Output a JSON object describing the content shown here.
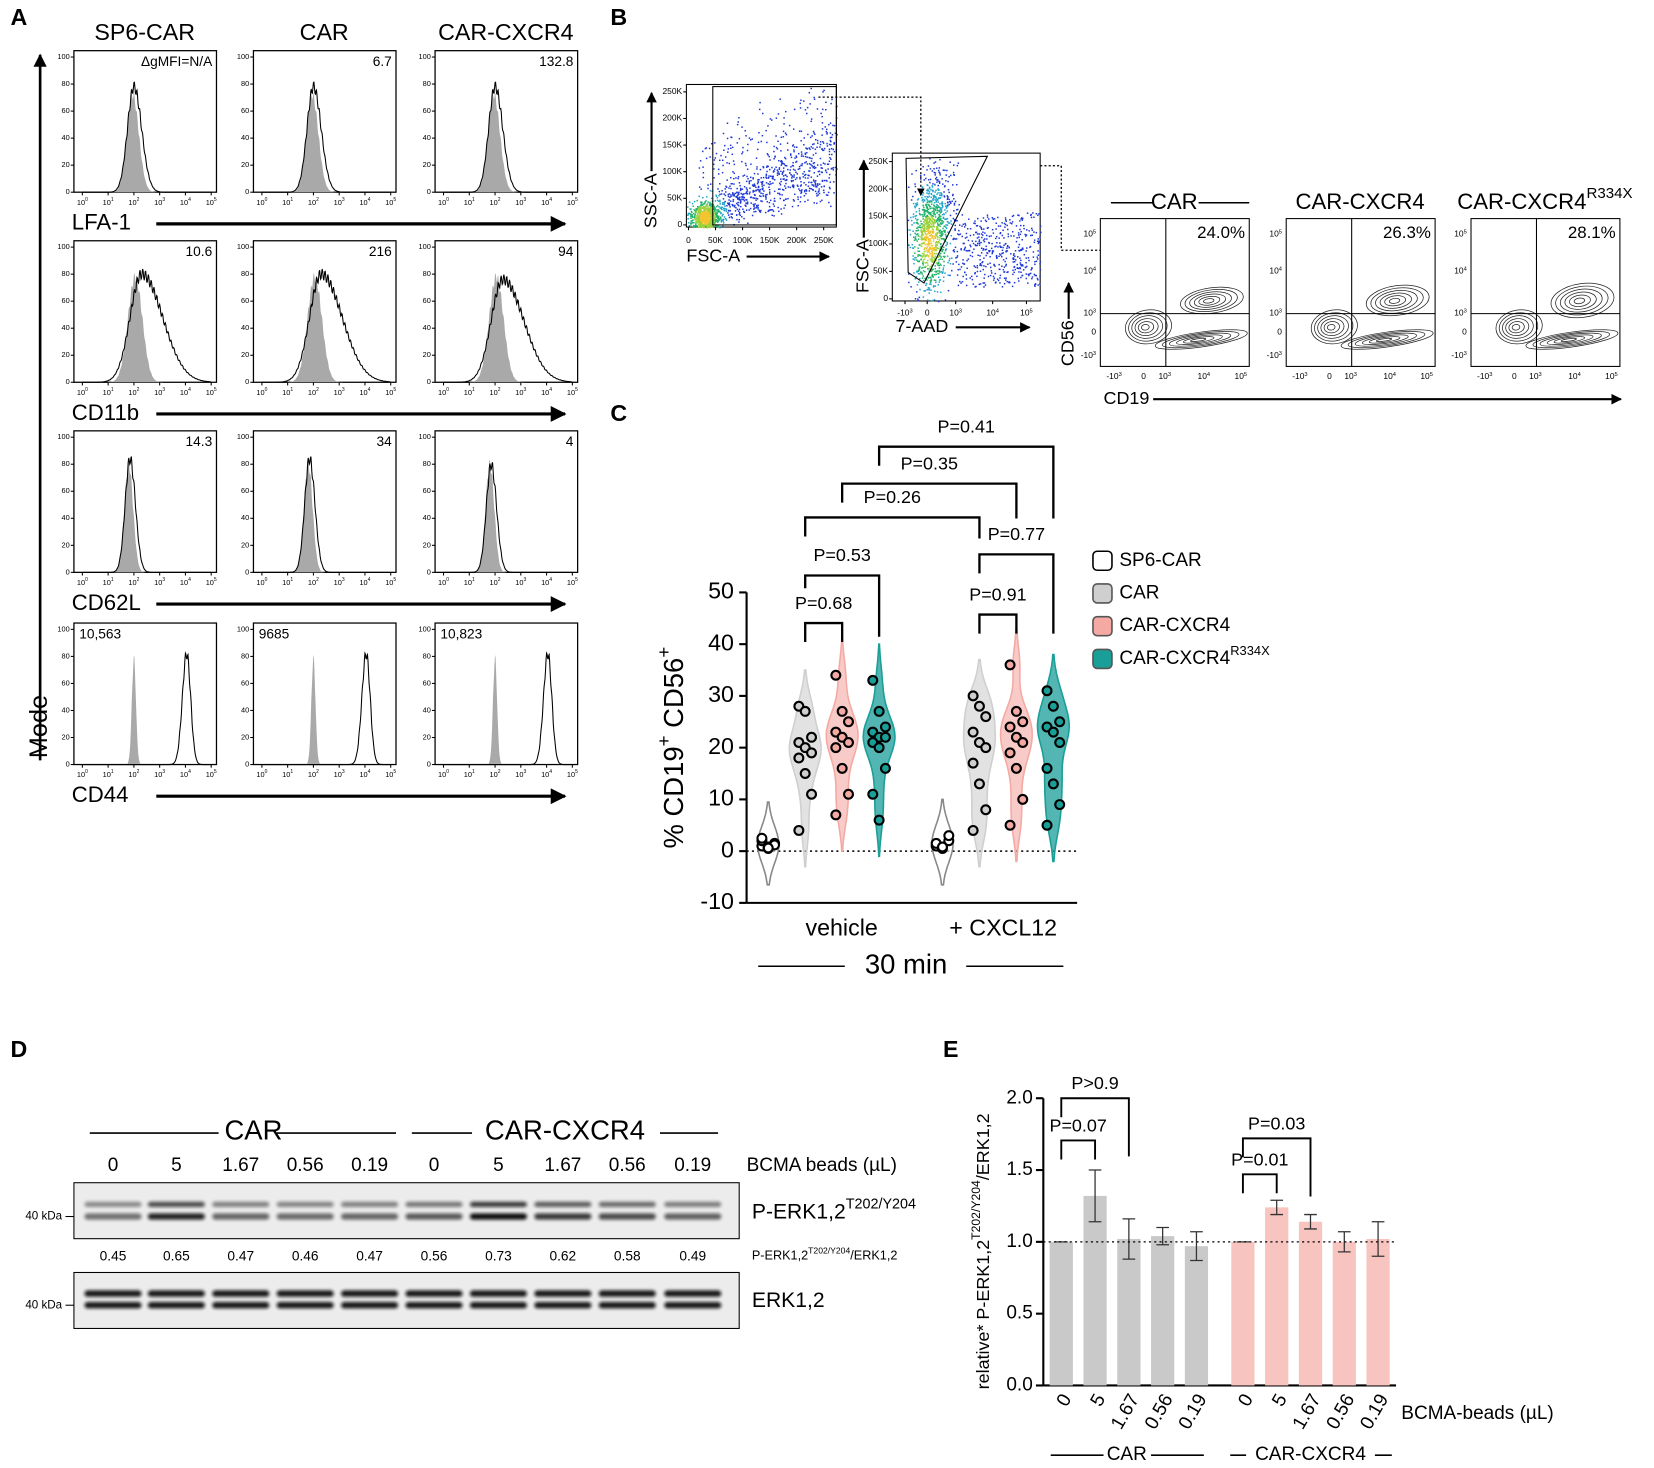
{
  "labels": {
    "a": "A",
    "b": "B",
    "c": "C",
    "d": "D",
    "e": "E"
  },
  "panel_a": {
    "columns": [
      "SP6-CAR",
      "CAR",
      "CAR-CXCR4"
    ],
    "y_label": "Mode",
    "rows": [
      {
        "marker": "LFA-1",
        "values": [
          "ΔgMFI=N/A",
          "6.7",
          "132.8"
        ]
      },
      {
        "marker": "CD11b",
        "values": [
          "10.6",
          "216",
          "94"
        ]
      },
      {
        "marker": "CD62L",
        "values": [
          "14.3",
          "34",
          "4"
        ]
      },
      {
        "marker": "CD44",
        "values": [
          "10,563",
          "9685",
          "10,823"
        ]
      }
    ],
    "yticks": [
      0,
      20,
      40,
      60,
      80,
      100
    ],
    "xticks": [
      [
        {
          "text": "10"
        },
        {
          "sup": "0"
        }
      ],
      [
        {
          "text": "10"
        },
        {
          "sup": "1"
        }
      ],
      [
        {
          "text": "10"
        },
        {
          "sup": "2"
        }
      ],
      [
        {
          "text": "10"
        },
        {
          "sup": "3"
        }
      ],
      [
        {
          "text": "10"
        },
        {
          "sup": "4"
        }
      ],
      [
        {
          "text": "10"
        },
        {
          "sup": "5"
        }
      ]
    ]
  },
  "panel_b": {
    "scatter1": {
      "x_label": "FSC-A",
      "y_label": "SSC-A",
      "xticks": [
        "0",
        "50K",
        "100K",
        "150K",
        "200K",
        "250K"
      ],
      "yticks": [
        "0",
        "50K",
        "100K",
        "150K",
        "200K",
        "250K"
      ]
    },
    "scatter2": {
      "x_label": "7-AAD",
      "y_label": "FSC-A",
      "xticks": [
        [
          {
            "text": "-10"
          },
          {
            "sup": "3"
          }
        ],
        [
          {
            "text": "0"
          }
        ],
        [
          {
            "text": "10"
          },
          {
            "sup": "3"
          }
        ],
        [
          {
            "text": "10"
          },
          {
            "sup": "4"
          }
        ],
        [
          {
            "text": "10"
          },
          {
            "sup": "5"
          }
        ]
      ],
      "yticks": [
        "0",
        "50K",
        "100K",
        "150K",
        "200K",
        "250K"
      ]
    },
    "contours": [
      {
        "title": [
          {
            "text": "CAR"
          }
        ],
        "percent": "24.0%"
      },
      {
        "title": [
          {
            "text": "CAR-CXCR4"
          }
        ],
        "percent": "26.3%"
      },
      {
        "title": [
          {
            "text": "CAR-CXCR4"
          },
          {
            "sup": "R334X"
          }
        ],
        "percent": "28.1%"
      }
    ],
    "contour_x_label": "CD19",
    "contour_y_label": "CD56",
    "contour_xticks": [
      [
        {
          "text": "-10"
        },
        {
          "sup": "3"
        }
      ],
      [
        {
          "text": "0"
        }
      ],
      [
        {
          "text": "10"
        },
        {
          "sup": "3"
        }
      ],
      [
        {
          "text": "10"
        },
        {
          "sup": "4"
        }
      ],
      [
        {
          "text": "10"
        },
        {
          "sup": "5"
        }
      ]
    ],
    "contour_yticks": [
      [
        {
          "text": "10"
        },
        {
          "sup": "5"
        }
      ],
      [
        {
          "text": "10"
        },
        {
          "sup": "4"
        }
      ],
      [
        {
          "text": "10"
        },
        {
          "sup": "3"
        }
      ],
      [
        {
          "text": "0"
        }
      ],
      [
        {
          "text": "-10"
        },
        {
          "sup": "3"
        }
      ]
    ]
  },
  "chart_data": [
    {
      "type": "violin",
      "categories": [
        "vehicle",
        "+ CXCL12"
      ],
      "xlabel": "30 min",
      "ylabel": [
        {
          "text": "% CD19"
        },
        {
          "sup": "+"
        },
        {
          "text": " CD56"
        },
        {
          "sup": "+"
        }
      ],
      "ylim": [
        -10,
        50
      ],
      "yticks": [
        -10,
        0,
        10,
        20,
        30,
        40,
        50
      ],
      "ref_line": 0,
      "series": [
        {
          "name": "SP6-CAR",
          "color": "#ffffff",
          "values": [
            [
              1,
              0.5,
              1.5,
              2,
              0.8,
              1.2,
              2.5,
              0.6
            ],
            [
              1,
              0.5,
              2,
              1.5,
              0.8,
              3
            ]
          ]
        },
        {
          "name": "CAR",
          "color": "#cfcfcf",
          "values": [
            [
              28,
              27,
              22,
              21,
              20,
              19,
              18,
              15,
              11,
              4
            ],
            [
              30,
              28,
              26,
              23,
              21,
              20,
              17,
              13,
              8,
              4
            ]
          ]
        },
        {
          "name": "CAR-CXCR4",
          "color": "#f4a9a3",
          "values": [
            [
              34,
              27,
              25,
              23,
              22,
              21,
              20,
              16,
              11,
              7
            ],
            [
              36,
              27,
              25,
              24,
              22,
              21,
              19,
              16,
              10,
              5
            ]
          ]
        },
        {
          "name": "CAR-CXCR4",
          "name_sup": "R334X",
          "color": "#1a9e98",
          "values": [
            [
              33,
              27,
              24,
              23,
              22,
              22,
              21,
              20,
              16,
              11,
              6
            ],
            [
              31,
              28,
              25,
              24,
              23,
              21,
              16,
              13,
              9,
              5
            ]
          ]
        }
      ],
      "comparisons": [
        {
          "text": "P=0.68",
          "from": [
            1,
            0
          ],
          "to": [
            2,
            0
          ]
        },
        {
          "text": "P=0.53",
          "from": [
            1,
            0
          ],
          "to": [
            3,
            0
          ]
        },
        {
          "text": "P=0.91",
          "from": [
            1,
            1
          ],
          "to": [
            2,
            1
          ]
        },
        {
          "text": "P=0.77",
          "from": [
            1,
            1
          ],
          "to": [
            3,
            1
          ]
        },
        {
          "text": "P=0.26",
          "from": [
            1,
            0
          ],
          "to": [
            1,
            1
          ]
        },
        {
          "text": "P=0.35",
          "from": [
            2,
            0
          ],
          "to": [
            2,
            1
          ]
        },
        {
          "text": "P=0.41",
          "from": [
            3,
            0
          ],
          "to": [
            3,
            1
          ]
        }
      ]
    },
    {
      "type": "bar",
      "categories": [
        "0",
        "5",
        "1.67",
        "0.56",
        "0.19"
      ],
      "xlabel": "BCMA-beads (µL)",
      "ylabel": [
        {
          "text": "relative* P-ERK1,2"
        },
        {
          "sup": "T202/Y204"
        },
        {
          "text": "/ERK1,2"
        }
      ],
      "ylim": [
        0,
        2
      ],
      "yticks": [
        {
          "value": 0,
          "label": "0.0"
        },
        {
          "value": 0.5,
          "label": "0.5"
        },
        {
          "value": 1,
          "label": "1.0"
        },
        {
          "value": 1.5,
          "label": "1.5"
        },
        {
          "value": 2,
          "label": "2.0"
        }
      ],
      "ref_line": 1,
      "series": [
        {
          "name": "CAR",
          "color": "#c9c9c9",
          "values": [
            1,
            1.32,
            1.02,
            1.04,
            0.97
          ],
          "errors": [
            0,
            0.18,
            0.14,
            0.06,
            0.1
          ]
        },
        {
          "name": "CAR-CXCR4",
          "color": "#f8c4bf",
          "values": [
            1,
            1.24,
            1.14,
            1.0,
            1.02
          ],
          "errors": [
            0,
            0.05,
            0.05,
            0.07,
            0.12
          ]
        }
      ],
      "comparisons": [
        {
          "text": "P=0.07",
          "series": 0,
          "from": 0,
          "to": 1
        },
        {
          "text": "P>0.9",
          "series": 0,
          "from": 0,
          "to": 2
        },
        {
          "text": "P=0.01",
          "series": 1,
          "from": 0,
          "to": 1
        },
        {
          "text": "P=0.03",
          "series": 1,
          "from": 0,
          "to": 2
        }
      ]
    }
  ],
  "panel_d": {
    "groups": [
      "CAR",
      "CAR-CXCR4"
    ],
    "lanes": [
      "0",
      "5",
      "1.67",
      "0.56",
      "0.19",
      "0",
      "5",
      "1.67",
      "0.56",
      "0.19"
    ],
    "lane_label": "BCMA beads (µL)",
    "size_marker": "40 kDa",
    "blots": [
      {
        "label": [
          {
            "text": "P-ERK1,2"
          },
          {
            "sup": "T202/Y204"
          }
        ]
      },
      {
        "label": [
          {
            "text": "ERK1,2"
          }
        ]
      }
    ],
    "ratios": [
      0.45,
      0.65,
      0.47,
      0.46,
      0.47,
      0.56,
      0.73,
      0.62,
      0.58,
      0.49
    ],
    "ratio_label": [
      {
        "text": "P-ERK1,2"
      },
      {
        "sup": "T202/Y204"
      },
      {
        "text": "/ERK1,2"
      }
    ]
  }
}
